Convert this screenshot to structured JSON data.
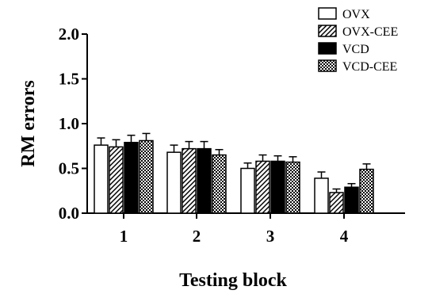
{
  "chart_data": {
    "type": "bar",
    "xlabel": "Testing block",
    "ylabel": "RM errors",
    "categories": [
      "1",
      "2",
      "3",
      "4"
    ],
    "ylim": [
      0,
      2.0
    ],
    "yticks": [
      "0.0",
      "0.5",
      "1.0",
      "1.5",
      "2.0"
    ],
    "legend_position": "top-right",
    "series": [
      {
        "name": "OVX",
        "pattern": "open",
        "values": [
          0.76,
          0.68,
          0.5,
          0.39
        ],
        "errors": [
          0.08,
          0.08,
          0.06,
          0.07
        ]
      },
      {
        "name": "OVX-CEE",
        "pattern": "hatched",
        "values": [
          0.74,
          0.72,
          0.58,
          0.23
        ],
        "errors": [
          0.08,
          0.08,
          0.07,
          0.04
        ]
      },
      {
        "name": "VCD",
        "pattern": "solid",
        "values": [
          0.79,
          0.72,
          0.58,
          0.29
        ],
        "errors": [
          0.08,
          0.08,
          0.06,
          0.04
        ]
      },
      {
        "name": "VCD-CEE",
        "pattern": "checkered",
        "values": [
          0.81,
          0.65,
          0.57,
          0.49
        ],
        "errors": [
          0.08,
          0.06,
          0.06,
          0.06
        ]
      }
    ]
  }
}
